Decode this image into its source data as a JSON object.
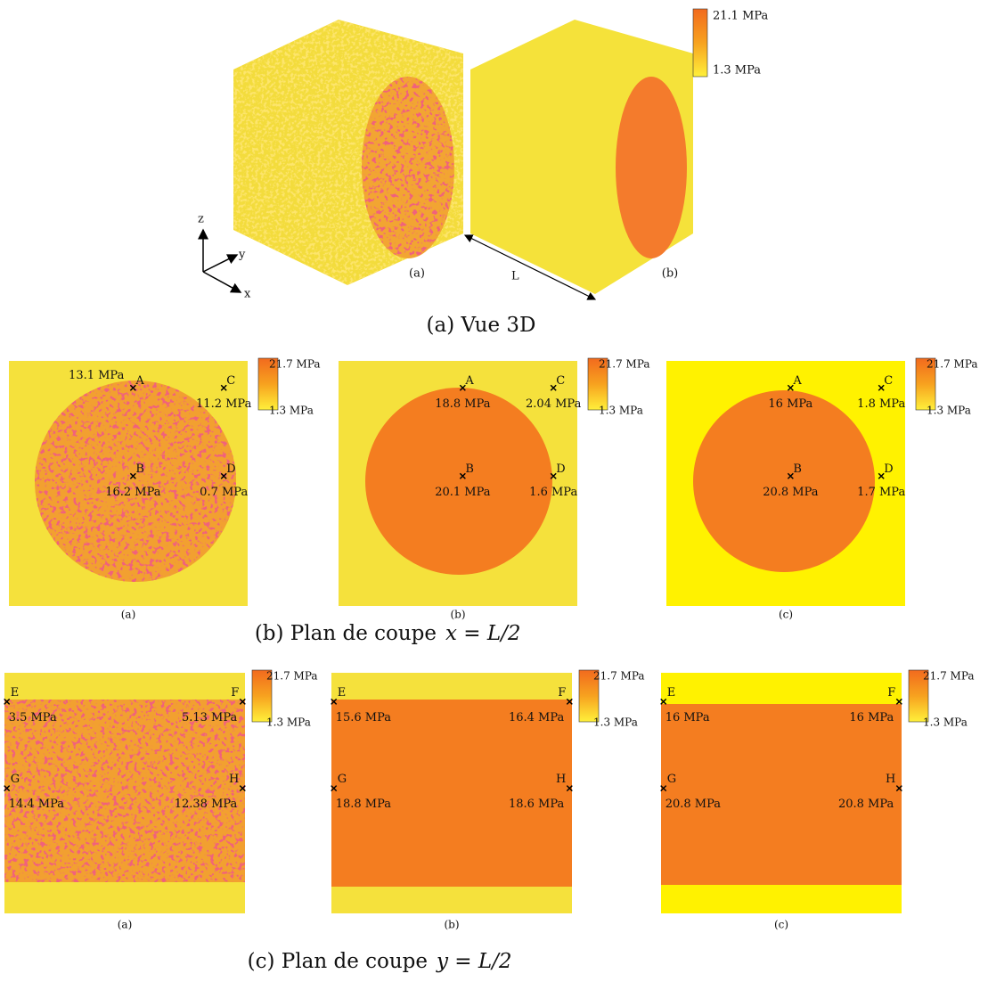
{
  "figure_3d": {
    "colorbar": {
      "max": "21.1 MPa",
      "min": "1.3 MPa"
    },
    "axes": [
      "z",
      "y",
      "x"
    ],
    "length": "L",
    "panels": [
      "(a)",
      "(b)"
    ],
    "caption": "(a) Vue 3D"
  },
  "section_x": {
    "caption": "(b) Plan de coupe",
    "caption_math": "x = L/2",
    "panels": [
      {
        "label": "(a)",
        "colorbar": {
          "max": "21.7 MPa",
          "min": "1.3 MPa"
        },
        "points": [
          {
            "name": "A",
            "value": "13.1 MPa"
          },
          {
            "name": "C",
            "value": "11.2 MPa"
          },
          {
            "name": "B",
            "value": "16.2 MPa"
          },
          {
            "name": "D",
            "value": "0.7 MPa"
          }
        ]
      },
      {
        "label": "(b)",
        "colorbar": {
          "max": "21.7 MPa",
          "min": "1.3 MPa"
        },
        "points": [
          {
            "name": "A",
            "value": "18.8 MPa"
          },
          {
            "name": "C",
            "value": "2.04 MPa"
          },
          {
            "name": "B",
            "value": "20.1 MPa"
          },
          {
            "name": "D",
            "value": "1.6 MPa"
          }
        ]
      },
      {
        "label": "(c)",
        "colorbar": {
          "max": "21.7 MPa",
          "min": "1.3 MPa"
        },
        "points": [
          {
            "name": "A",
            "value": "16 MPa"
          },
          {
            "name": "C",
            "value": "1.8 MPa"
          },
          {
            "name": "B",
            "value": "20.8 MPa"
          },
          {
            "name": "D",
            "value": "1.7 MPa"
          }
        ]
      }
    ]
  },
  "section_y": {
    "caption": "(c) Plan de coupe",
    "caption_math": "y = L/2",
    "panels": [
      {
        "label": "(a)",
        "colorbar": {
          "max": "21.7 MPa",
          "min": "1.3 MPa"
        },
        "points": [
          {
            "name": "E",
            "value": "3.5 MPa"
          },
          {
            "name": "F",
            "value": "5.13 MPa"
          },
          {
            "name": "G",
            "value": "14.4 MPa"
          },
          {
            "name": "H",
            "value": "12.38 MPa"
          }
        ]
      },
      {
        "label": "(b)",
        "colorbar": {
          "max": "21.7 MPa",
          "min": "1.3 MPa"
        },
        "points": [
          {
            "name": "E",
            "value": "15.6 MPa"
          },
          {
            "name": "F",
            "value": "16.4 MPa"
          },
          {
            "name": "G",
            "value": "18.8 MPa"
          },
          {
            "name": "H",
            "value": "18.6 MPa"
          }
        ]
      },
      {
        "label": "(c)",
        "colorbar": {
          "max": "21.7 MPa",
          "min": "1.3 MPa"
        },
        "points": [
          {
            "name": "E",
            "value": "16 MPa"
          },
          {
            "name": "F",
            "value": "16 MPa"
          },
          {
            "name": "G",
            "value": "20.8 MPa"
          },
          {
            "name": "H",
            "value": "20.8 MPa"
          }
        ]
      }
    ]
  }
}
